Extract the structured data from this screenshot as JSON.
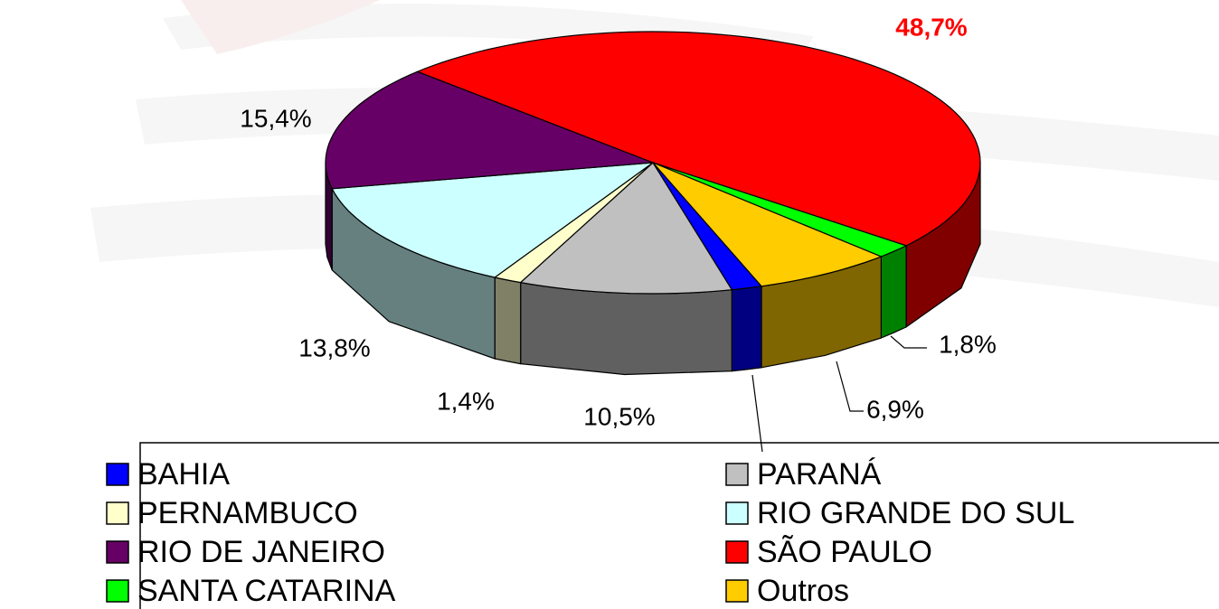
{
  "chart_data": {
    "type": "pie3d",
    "categories": [
      "BAHIA",
      "PARANÁ",
      "PERNAMBUCO",
      "RIO GRANDE DO SUL",
      "RIO DE JANEIRO",
      "SÃO PAULO",
      "SANTA CATARINA",
      "Outros"
    ],
    "values": [
      1.5,
      10.5,
      1.4,
      13.8,
      15.4,
      48.7,
      1.8,
      6.9
    ],
    "value_labels": [
      null,
      "10,5%",
      "1,4%",
      "13,8%",
      "15,4%",
      "48,7%",
      "1,8%",
      "6,9%"
    ],
    "colors": [
      "#0000ff",
      "#c0c0c0",
      "#ffffcc",
      "#ccffff",
      "#660066",
      "#ff0000",
      "#00ff00",
      "#ffcc00"
    ],
    "legend": "bottom"
  }
}
